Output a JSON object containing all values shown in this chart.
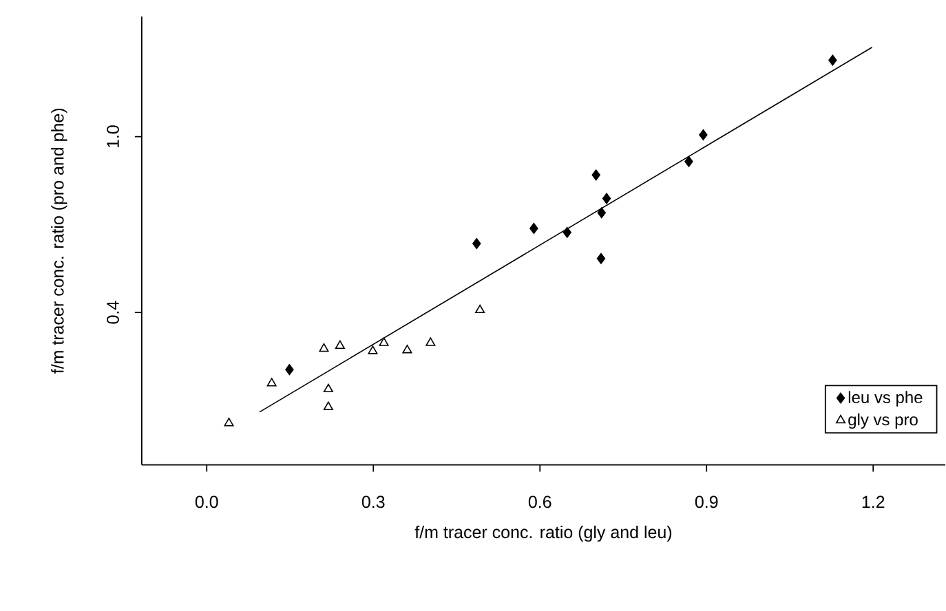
{
  "chart_data": {
    "type": "scatter",
    "xlabel": "f/m tracer conc. ratio (gly and leu)",
    "ylabel": "f/m tracer conc. ratio (pro and phe)",
    "xlim": [
      -0.117,
      1.33
    ],
    "ylim": [
      -0.12,
      1.41
    ],
    "xticks": [
      {
        "value": 0,
        "label": "0.0"
      },
      0.3,
      0.6,
      0.9,
      1.2
    ],
    "yticks": [
      {
        "value": 0.4,
        "label": "0.4"
      },
      {
        "value": 1,
        "label": "1.0"
      }
    ],
    "legend": "bottom right",
    "grid": false,
    "series": [
      {
        "name": "leu vs phe",
        "color": "#000000",
        "marker": "diamond",
        "x": [
          0.486,
          0.589,
          0.649,
          0.701,
          0.72,
          0.711,
          0.71,
          0.868,
          0.894,
          1.127,
          0.149
        ],
        "values": [
          0.635,
          0.687,
          0.673,
          0.869,
          0.789,
          0.74,
          0.584,
          0.915,
          1.006,
          1.261,
          0.205
        ]
      },
      {
        "name": "gly vs pro",
        "color": "#000000",
        "marker": "triangle",
        "x": [
          0.04,
          0.117,
          0.211,
          0.24,
          0.219,
          0.219,
          0.299,
          0.319,
          0.361,
          0.403,
          0.492
        ],
        "values": [
          0.022,
          0.158,
          0.276,
          0.286,
          0.138,
          0.077,
          0.268,
          0.296,
          0.271,
          0.296,
          0.408
        ]
      },
      {
        "type": "line",
        "color": "#000000",
        "marker": "none",
        "line_style": "solid",
        "x": [
          0.095,
          1.198
        ],
        "values": [
          0.06,
          1.305
        ]
      }
    ]
  }
}
